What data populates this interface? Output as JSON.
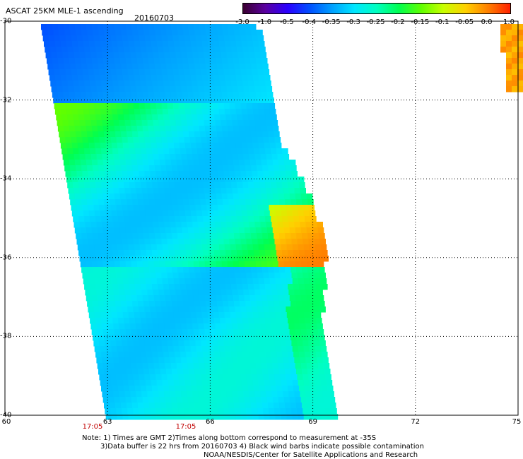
{
  "header": {
    "title": "ASCAT 25KM MLE-1 ascending",
    "date": "20160703"
  },
  "colorbar": {
    "labels": [
      "-3.0",
      "-1.0",
      "-0.5",
      "-0.4",
      "-0.35",
      "-0.3",
      "-0.25",
      "-0.2",
      "-0.15",
      "-0.1",
      "-0.05",
      "0.0",
      "1.0"
    ],
    "colors": [
      "#3a0030",
      "#5a00a0",
      "#2a00ff",
      "#0050ff",
      "#00a0ff",
      "#00e6ff",
      "#00ffc0",
      "#00ff50",
      "#60ff00",
      "#c8ff00",
      "#ffd000",
      "#ff8000",
      "#ff2000"
    ]
  },
  "axes": {
    "y_labels": [
      "-30",
      "-32",
      "-34",
      "-36",
      "-38",
      "-40"
    ],
    "x_labels": [
      "60",
      "63",
      "66",
      "69",
      "72",
      "75"
    ]
  },
  "times": [
    "17:05",
    "17:05"
  ],
  "notes": [
    "Note: 1) Times are GMT 2)Times along bottom correspond to measurement at -35S",
    "3)Data buffer is 22 hrs from 20160703 4) Black wind barbs indicate possible contamination",
    "NOAA/NESDIS/Center for Satellite Applications and Research"
  ]
}
